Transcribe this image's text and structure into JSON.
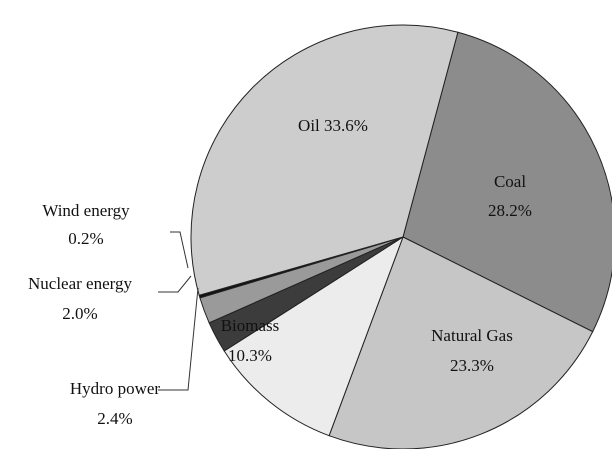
{
  "chart_data": {
    "type": "pie",
    "categories": [
      "Coal",
      "Natural Gas",
      "Biomass",
      "Hydro power",
      "Nuclear energy",
      "Wind energy",
      "Oil"
    ],
    "values": [
      28.2,
      23.3,
      10.3,
      2.4,
      2.0,
      0.2,
      33.6
    ],
    "value_labels": [
      "28.2%",
      "23.3%",
      "10.3%",
      "2.4%",
      "2.0%",
      "0.2%",
      "33.6%"
    ],
    "colors": [
      "#8c8c8c",
      "#c6c6c6",
      "#ececec",
      "#3c3c3c",
      "#9a9a9a",
      "#111111",
      "#cdcdcd"
    ]
  }
}
